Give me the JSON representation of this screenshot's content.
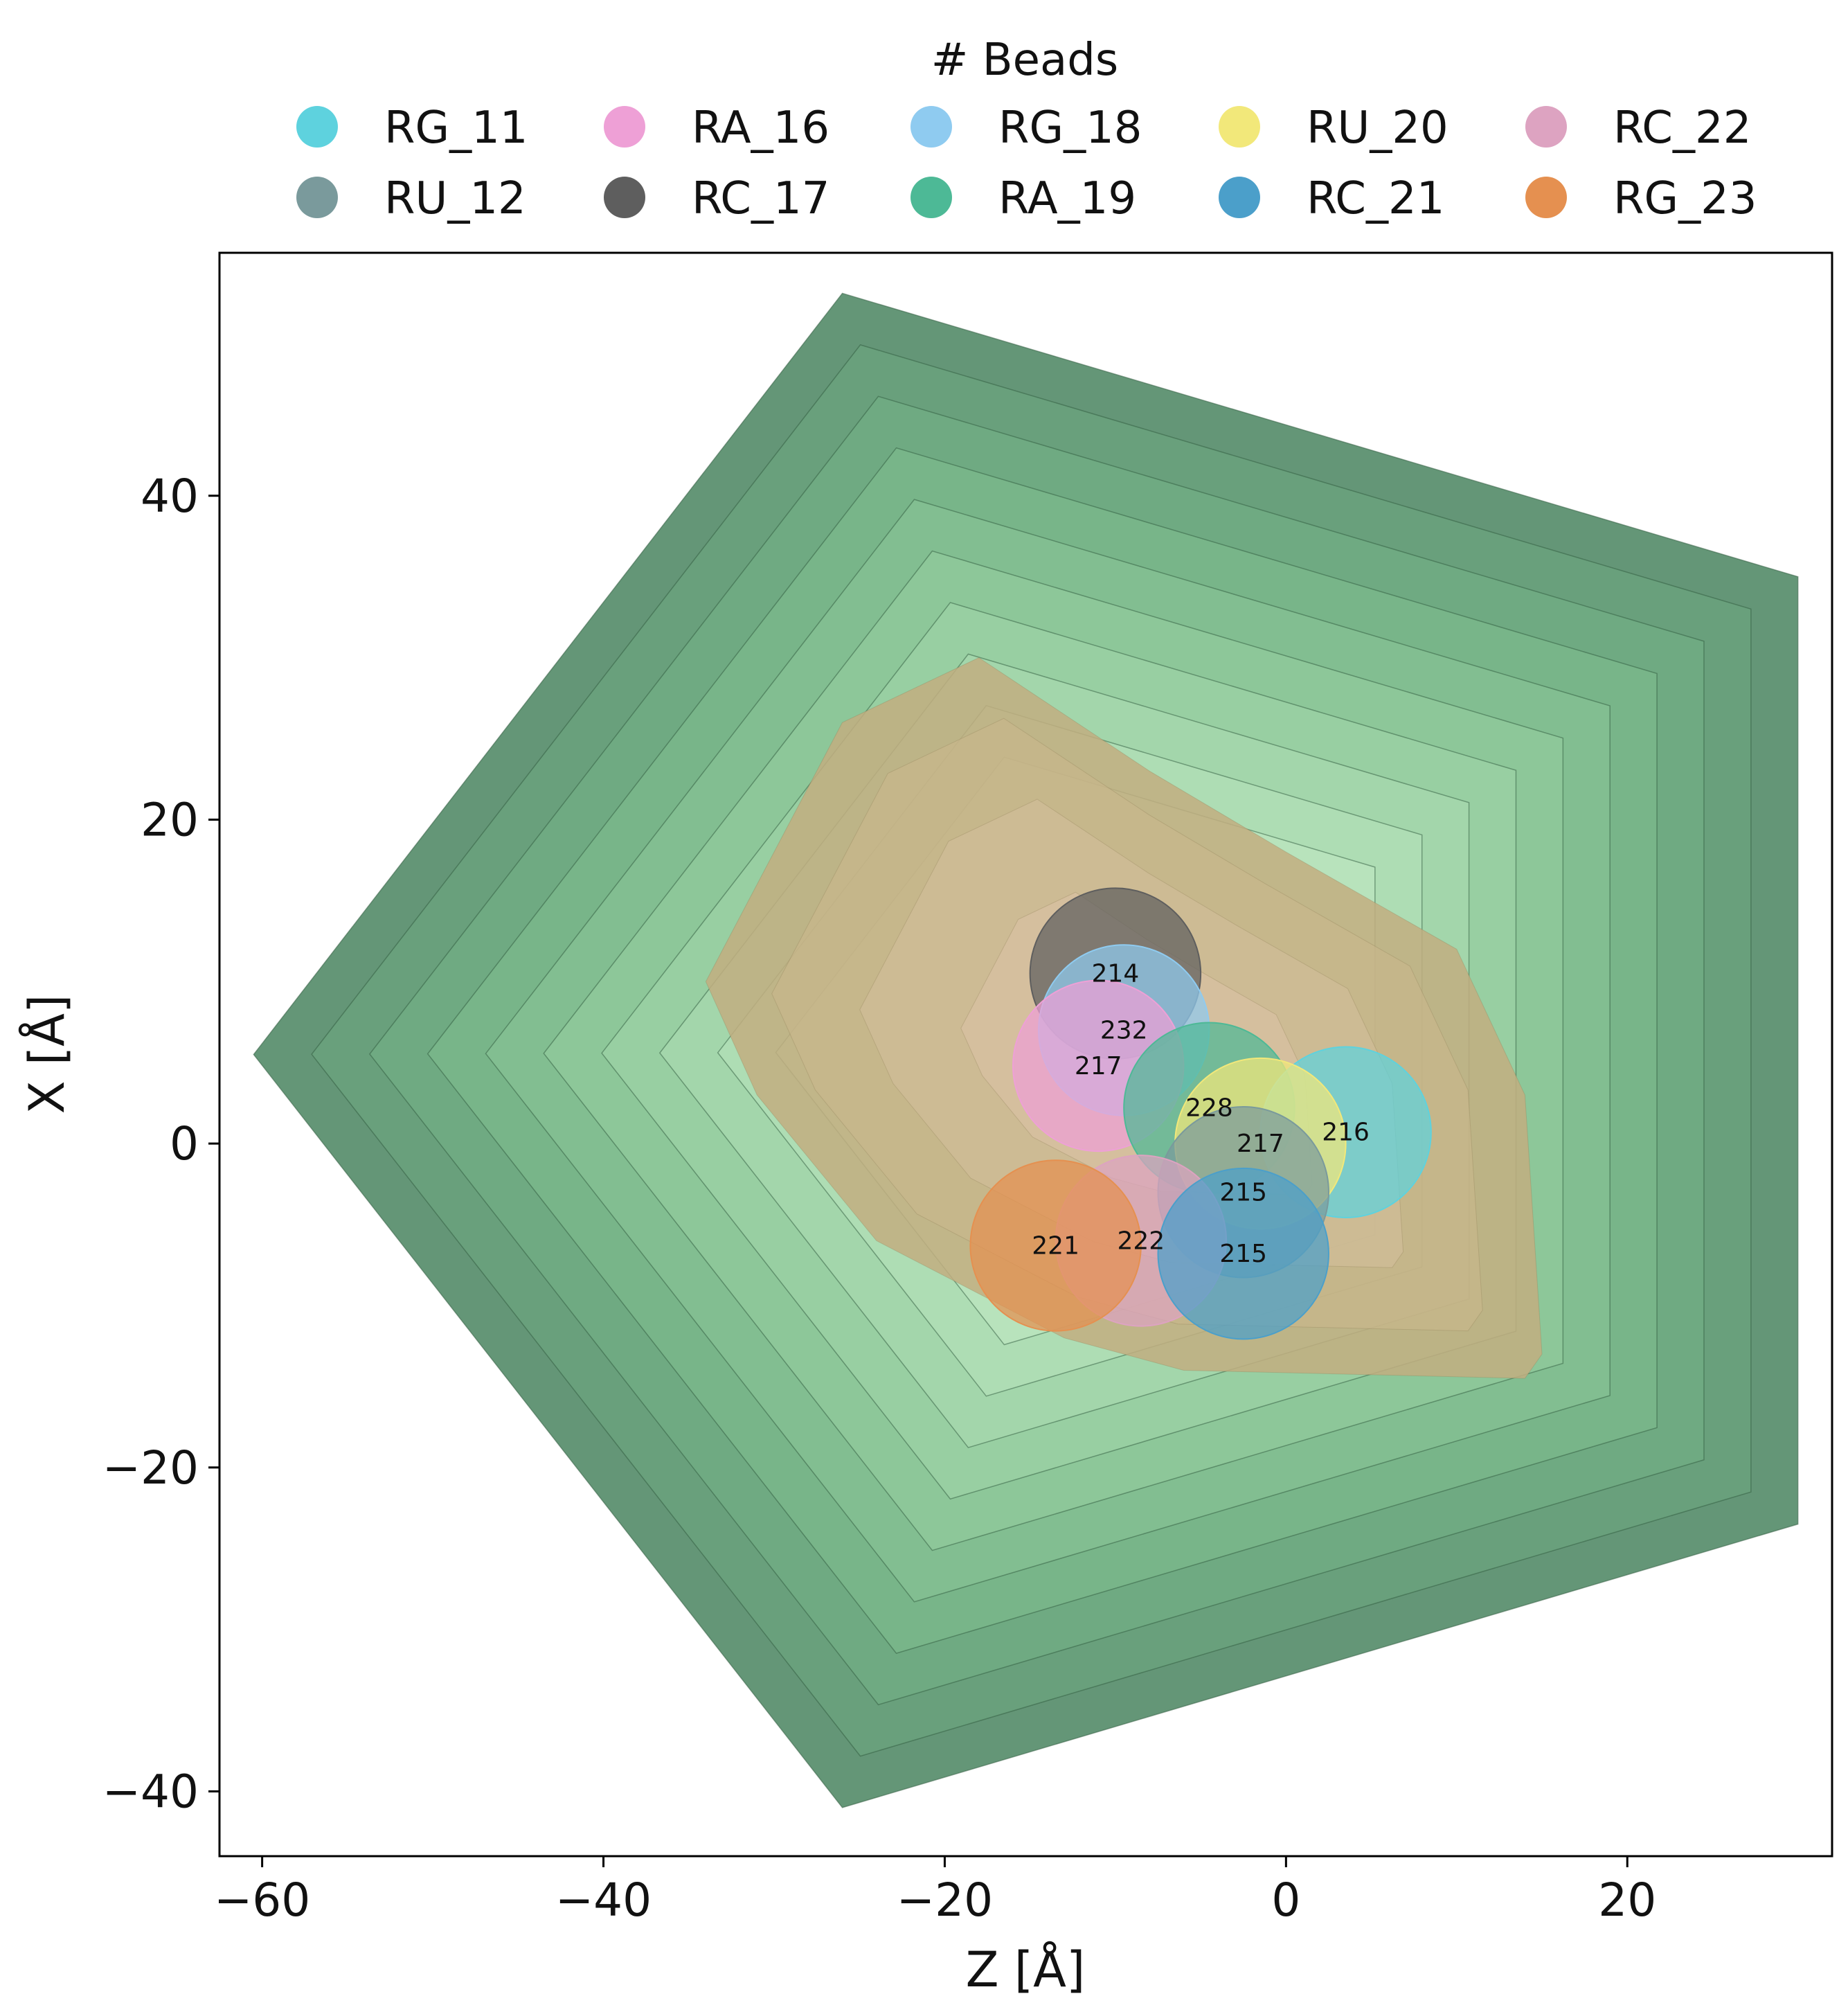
{
  "chart_data": {
    "type": "scatter",
    "xlabel": "Z [Å]",
    "ylabel": "X [Å]",
    "xlim": [
      -62.5,
      32
    ],
    "ylim": [
      -44,
      55
    ],
    "xticks": [
      -60,
      -40,
      -20,
      0,
      20
    ],
    "yticks": [
      -40,
      -20,
      0,
      20,
      40
    ],
    "xtick_labels": [
      "−60",
      "−40",
      "−20",
      "0",
      "20"
    ],
    "ytick_labels": [
      "−40",
      "−20",
      "0",
      "20",
      "40"
    ],
    "grid": false,
    "legend": {
      "title": "# Beads",
      "placement": "top-center, above plot",
      "columns": 6,
      "entries": [
        {
          "name": "RG_11",
          "color": "#5ED2DE"
        },
        {
          "name": "RU_12",
          "color": "#7A9A9C"
        },
        {
          "name": "RA_16",
          "color": "#EEA0D6"
        },
        {
          "name": "RC_17",
          "color": "#5E5E5E"
        },
        {
          "name": "RG_18",
          "color": "#8FCBF0"
        },
        {
          "name": "RA_19",
          "color": "#4DB996"
        },
        {
          "name": "RU_20",
          "color": "#F2E87A"
        },
        {
          "name": "RC_21",
          "color": "#4B9FCA"
        },
        {
          "name": "RC_22",
          "color": "#DDA3C1"
        },
        {
          "name": "RG_23",
          "color": "#E59050"
        }
      ]
    },
    "outer_region": {
      "description": "contoured pentagon density",
      "vertices": [
        [
          -26,
          52.5
        ],
        [
          30,
          35
        ],
        [
          30,
          -23.5
        ],
        [
          -26,
          -41
        ],
        [
          -60.5,
          5.5
        ]
      ],
      "colors": [
        "#649677",
        "#69A07C",
        "#6FAA82",
        "#78B589",
        "#82BE91",
        "#8DC799",
        "#98CFA2",
        "#A3D6AB",
        "#AEDDB4",
        "#B8E3BC"
      ]
    },
    "inner_region": {
      "description": "tan density hull",
      "vertices": [
        [
          -18,
          30
        ],
        [
          -26,
          26
        ],
        [
          -34,
          10
        ],
        [
          -31,
          3
        ],
        [
          -24,
          -6
        ],
        [
          -13,
          -12
        ],
        [
          -6,
          -14
        ],
        [
          14,
          -14.5
        ],
        [
          15,
          -13
        ],
        [
          14,
          3
        ],
        [
          10,
          12
        ],
        [
          0,
          18
        ],
        [
          -8,
          23
        ]
      ],
      "color": "#C2AE80"
    },
    "beads": [
      {
        "name": "RC_17",
        "z": -10,
        "x": 10.5,
        "label": "214",
        "color": "#5E5E5E"
      },
      {
        "name": "RG_18",
        "z": -9.5,
        "x": 7.0,
        "label": "232",
        "color": "#8FCBF0"
      },
      {
        "name": "RA_16",
        "z": -11,
        "x": 4.8,
        "label": "217",
        "color": "#EEA0D6"
      },
      {
        "name": "RA_19",
        "z": -4.5,
        "x": 2.2,
        "label": "228",
        "color": "#4DB996"
      },
      {
        "name": "RG_11",
        "z": 3.5,
        "x": 0.7,
        "label": "216",
        "color": "#5ED2DE"
      },
      {
        "name": "RU_20",
        "z": -1.5,
        "x": 0.0,
        "label": "217",
        "color": "#F2E87A"
      },
      {
        "name": "RU_12",
        "z": -2.5,
        "x": -3.0,
        "label": "215",
        "color": "#7A9A9C"
      },
      {
        "name": "RC_22",
        "z": -8.5,
        "x": -6.0,
        "label": "222",
        "color": "#DDA3C1"
      },
      {
        "name": "RG_23",
        "z": -13.5,
        "x": -6.3,
        "label": "221",
        "color": "#E59050"
      },
      {
        "name": "RC_21",
        "z": -2.5,
        "x": -6.8,
        "label": "215",
        "color": "#4B9FCA"
      }
    ],
    "bead_radius": 5.0
  }
}
